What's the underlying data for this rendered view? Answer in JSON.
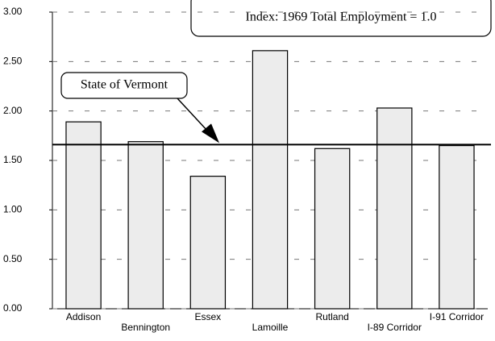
{
  "chart_data": {
    "type": "bar",
    "annotation": "Index: 1969 Total Employment = 1.0",
    "categories": [
      "Addison",
      "Bennington",
      "Essex",
      "Lamoille",
      "Rutland",
      "I-89 Corridor",
      "I-91 Corridor"
    ],
    "values": [
      1.89,
      1.69,
      1.34,
      2.61,
      1.62,
      2.03,
      1.65
    ],
    "color": "#ececec",
    "reference_line": {
      "label": "State of Vermont",
      "value": 1.66
    },
    "ylim": [
      0,
      3
    ],
    "yticks": [
      {
        "value": 0,
        "label": "0.00"
      },
      {
        "value": 0.5,
        "label": "0.50"
      },
      {
        "value": 1,
        "label": "1.00"
      },
      {
        "value": 1.5,
        "label": "1.50"
      },
      {
        "value": 2,
        "label": "2.00"
      },
      {
        "value": 2.5,
        "label": "2.50"
      },
      {
        "value": 3,
        "label": "3.00"
      }
    ],
    "grid": true
  }
}
